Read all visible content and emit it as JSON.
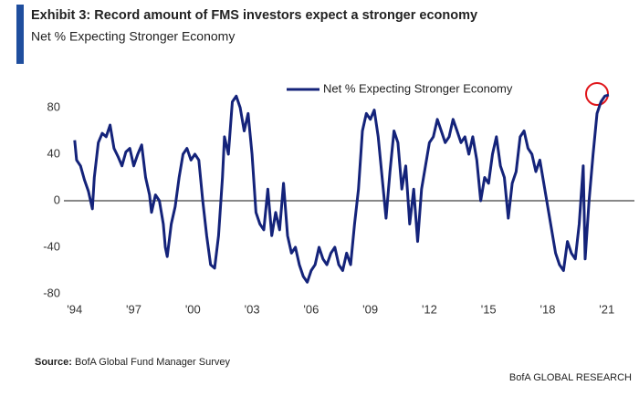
{
  "chart_data": {
    "type": "line",
    "title": "Exhibit 3: Record amount of FMS investors expect a stronger economy",
    "subtitle": "Net % Expecting Stronger Economy",
    "source_label": "Source:",
    "source": "BofA Global Fund Manager Survey",
    "footer": "BofA GLOBAL RESEARCH",
    "xlim": [
      1992.9,
      2022.4
    ],
    "ylim": [
      -85,
      100
    ],
    "yticks": [
      80,
      40,
      0,
      -40,
      -80
    ],
    "xticks": [
      {
        "value": 1994,
        "label": "'94"
      },
      {
        "value": 1997,
        "label": "'97"
      },
      {
        "value": 2000,
        "label": "'00"
      },
      {
        "value": 2003,
        "label": "'03"
      },
      {
        "value": 2006,
        "label": "'06"
      },
      {
        "value": 2009,
        "label": "'09"
      },
      {
        "value": 2012,
        "label": "'12"
      },
      {
        "value": 2015,
        "label": "'15"
      },
      {
        "value": 2018,
        "label": "'18"
      },
      {
        "value": 2021,
        "label": "'21"
      }
    ],
    "grid": false,
    "zero_line": true,
    "legend": "top",
    "x": [
      1994.0,
      1994.1,
      1994.3,
      1994.5,
      1994.7,
      1994.9,
      1995.0,
      1995.2,
      1995.4,
      1995.6,
      1995.8,
      1996.0,
      1996.2,
      1996.4,
      1996.6,
      1996.8,
      1997.0,
      1997.2,
      1997.4,
      1997.6,
      1997.8,
      1997.9,
      1998.1,
      1998.3,
      1998.5,
      1998.6,
      1998.7,
      1998.9,
      1999.1,
      1999.3,
      1999.5,
      1999.7,
      1999.9,
      2000.1,
      2000.3,
      2000.5,
      2000.7,
      2000.9,
      2001.1,
      2001.3,
      2001.5,
      2001.6,
      2001.8,
      2002.0,
      2002.2,
      2002.4,
      2002.6,
      2002.8,
      2003.0,
      2003.2,
      2003.4,
      2003.6,
      2003.8,
      2004.0,
      2004.2,
      2004.4,
      2004.6,
      2004.8,
      2005.0,
      2005.2,
      2005.4,
      2005.6,
      2005.8,
      2006.0,
      2006.2,
      2006.4,
      2006.6,
      2006.8,
      2007.0,
      2007.2,
      2007.4,
      2007.6,
      2007.8,
      2008.0,
      2008.2,
      2008.4,
      2008.6,
      2008.8,
      2009.0,
      2009.2,
      2009.4,
      2009.6,
      2009.8,
      2010.0,
      2010.2,
      2010.4,
      2010.6,
      2010.8,
      2011.0,
      2011.2,
      2011.4,
      2011.6,
      2011.8,
      2012.0,
      2012.2,
      2012.4,
      2012.6,
      2012.8,
      2013.0,
      2013.2,
      2013.4,
      2013.6,
      2013.8,
      2014.0,
      2014.2,
      2014.4,
      2014.6,
      2014.8,
      2015.0,
      2015.2,
      2015.4,
      2015.6,
      2015.8,
      2016.0,
      2016.2,
      2016.4,
      2016.6,
      2016.8,
      2017.0,
      2017.2,
      2017.4,
      2017.6,
      2017.8,
      2018.0,
      2018.2,
      2018.4,
      2018.6,
      2018.8,
      2019.0,
      2019.2,
      2019.4,
      2019.6,
      2019.8,
      2019.9,
      2020.1,
      2020.3,
      2020.5,
      2020.7,
      2020.9,
      2021.1
    ],
    "series": [
      {
        "name": "Net % Expecting Stronger Economy",
        "color": "#14237a",
        "values": [
          52,
          35,
          30,
          18,
          8,
          -7,
          20,
          50,
          58,
          55,
          65,
          45,
          38,
          30,
          42,
          45,
          30,
          40,
          48,
          20,
          5,
          -10,
          5,
          0,
          -20,
          -40,
          -48,
          -20,
          -5,
          20,
          40,
          45,
          35,
          40,
          35,
          0,
          -30,
          -55,
          -58,
          -30,
          20,
          55,
          40,
          85,
          90,
          80,
          60,
          75,
          40,
          -10,
          -20,
          -25,
          10,
          -30,
          -10,
          -25,
          15,
          -30,
          -45,
          -40,
          -55,
          -65,
          -70,
          -60,
          -55,
          -40,
          -50,
          -55,
          -45,
          -40,
          -55,
          -60,
          -45,
          -55,
          -20,
          10,
          60,
          75,
          70,
          78,
          55,
          20,
          -15,
          25,
          60,
          50,
          10,
          30,
          -20,
          10,
          -35,
          10,
          30,
          50,
          55,
          70,
          60,
          50,
          55,
          70,
          60,
          50,
          55,
          40,
          55,
          35,
          0,
          20,
          15,
          40,
          55,
          30,
          20,
          -15,
          15,
          25,
          55,
          60,
          45,
          40,
          25,
          35,
          15,
          -5,
          -25,
          -45,
          -55,
          -60,
          -35,
          -45,
          -50,
          -20,
          30,
          -50,
          0,
          40,
          75,
          85,
          90,
          91
        ]
      }
    ]
  }
}
